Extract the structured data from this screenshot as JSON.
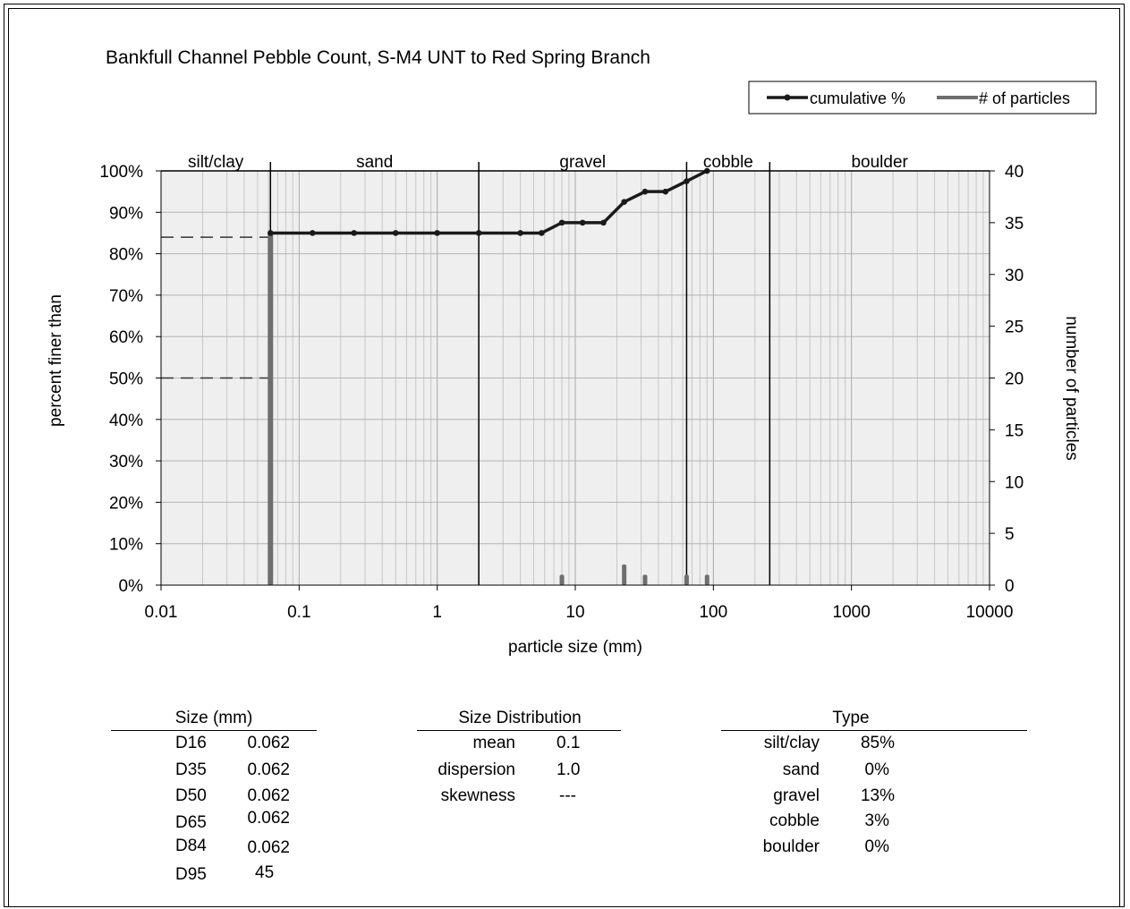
{
  "chart_data": {
    "type": "line",
    "title": "Bankfull Channel Pebble Count,  S-M4 UNT to Red Spring Branch",
    "xlabel": "particle size (mm)",
    "ylabel": "percent finer than",
    "y2label": "number of particles",
    "xscale": "log",
    "xlim": [
      0.01,
      10000
    ],
    "ylim": [
      0,
      100
    ],
    "y2lim": [
      0,
      40
    ],
    "x_ticks": [
      "0.01",
      "0.1",
      "1",
      "10",
      "100",
      "1000",
      "10000"
    ],
    "y_ticks": [
      "0%",
      "10%",
      "20%",
      "30%",
      "40%",
      "50%",
      "60%",
      "70%",
      "80%",
      "90%",
      "100%"
    ],
    "y2_ticks": [
      "0",
      "5",
      "10",
      "15",
      "20",
      "25",
      "30",
      "35",
      "40"
    ],
    "grid": true,
    "legend": {
      "position": "top-right",
      "entries": [
        "cumulative %",
        "# of particles"
      ]
    },
    "size_classes": [
      {
        "label": "silt/clay",
        "min": 0.01,
        "max": 0.062
      },
      {
        "label": "sand",
        "min": 0.062,
        "max": 2
      },
      {
        "label": "gravel",
        "min": 2,
        "max": 64
      },
      {
        "label": "cobble",
        "min": 64,
        "max": 256
      },
      {
        "label": "boulder",
        "min": 256,
        "max": 10000
      }
    ],
    "series": [
      {
        "name": "cumulative %",
        "axis": "left",
        "color": "#1a1a1a",
        "x": [
          0.062,
          0.125,
          0.25,
          0.5,
          1,
          2,
          4,
          5.7,
          8,
          11.3,
          16,
          22.6,
          32,
          45,
          64,
          90
        ],
        "y": [
          85,
          85,
          85,
          85,
          85,
          85,
          85,
          85,
          87.5,
          87.5,
          87.5,
          92.5,
          95,
          95,
          97.5,
          100
        ]
      },
      {
        "name": "# of particles",
        "axis": "right",
        "color": "#6e6e6e",
        "x": [
          0.062,
          8,
          22.6,
          32,
          64,
          90
        ],
        "y": [
          34,
          1,
          2,
          1,
          1,
          1
        ]
      }
    ],
    "reference_lines": [
      {
        "percent": 84,
        "size": 0.062
      },
      {
        "percent": 50,
        "size": 0.062
      }
    ]
  },
  "tables": {
    "size": {
      "header": "Size (mm)",
      "rows": [
        {
          "label": "D16",
          "value": "0.062"
        },
        {
          "label": "D35",
          "value": "0.062"
        },
        {
          "label": "D50",
          "value": "0.062"
        },
        {
          "label": "D65",
          "value": "0.062"
        },
        {
          "label": "D84",
          "value": "0.062"
        },
        {
          "label": "D95",
          "value": "45"
        }
      ]
    },
    "distribution": {
      "header": "Size Distribution",
      "rows": [
        {
          "label": "mean",
          "value": "0.1"
        },
        {
          "label": "dispersion",
          "value": "1.0"
        },
        {
          "label": "skewness",
          "value": "---"
        }
      ]
    },
    "type": {
      "header": "Type",
      "rows": [
        {
          "label": "silt/clay",
          "value": "85%"
        },
        {
          "label": "sand",
          "value": "0%"
        },
        {
          "label": "gravel",
          "value": "13%"
        },
        {
          "label": "cobble",
          "value": "3%"
        },
        {
          "label": "boulder",
          "value": "0%"
        }
      ]
    }
  }
}
